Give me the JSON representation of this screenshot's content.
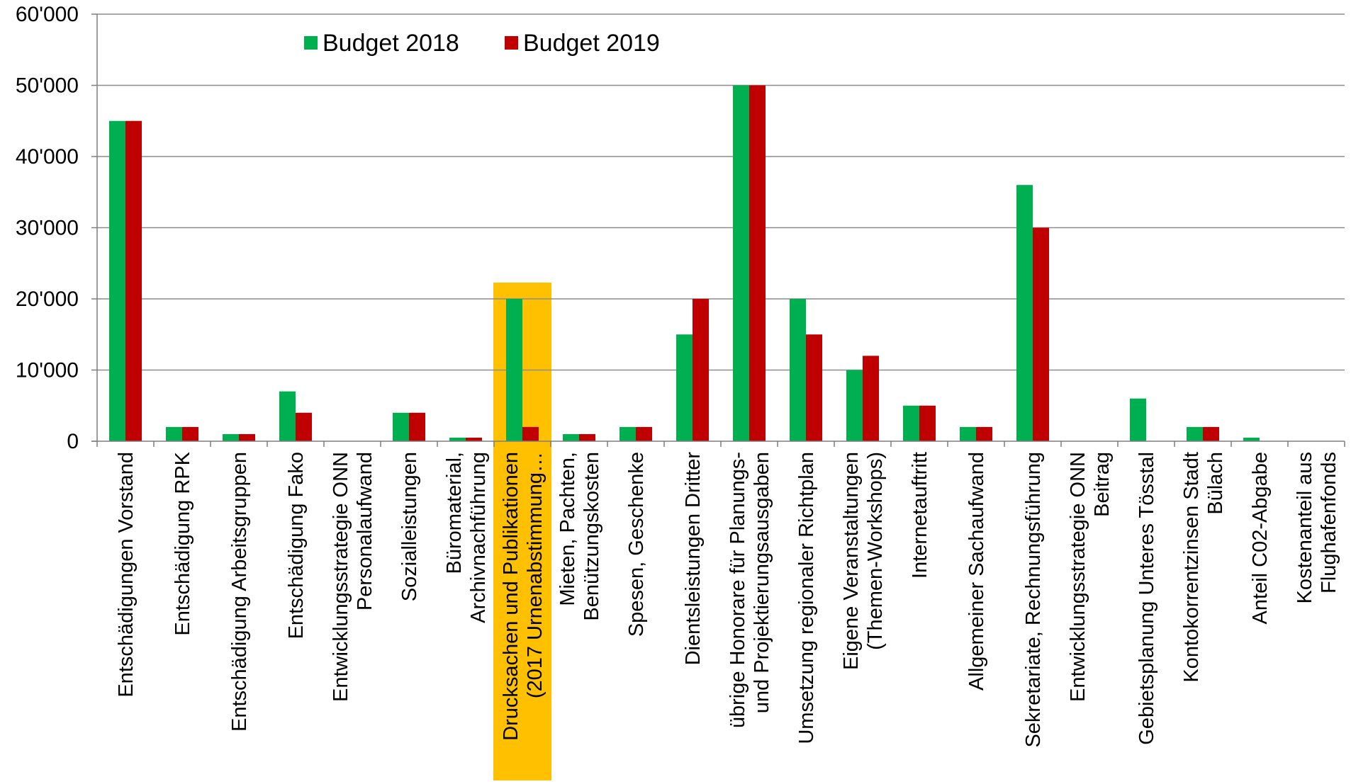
{
  "chart_data": {
    "type": "bar",
    "title": "",
    "xlabel": "",
    "ylabel": "",
    "ylim": [
      0,
      60000
    ],
    "yticks": [
      {
        "value": 0,
        "label": "0"
      },
      {
        "value": 10000,
        "label": "10'000"
      },
      {
        "value": 20000,
        "label": "20'000"
      },
      {
        "value": 30000,
        "label": "30'000"
      },
      {
        "value": 40000,
        "label": "40'000"
      },
      {
        "value": 50000,
        "label": "50'000"
      },
      {
        "value": 60000,
        "label": "60'000"
      }
    ],
    "grid": true,
    "legend_position": "top-left",
    "categories": [
      [
        "Entschädigungen Vorstand"
      ],
      [
        "Entschädigung RPK"
      ],
      [
        "Entschädigung Arbeitsgruppen"
      ],
      [
        "Entschädigung Fako"
      ],
      [
        "Entwicklungsstrategie ONN",
        "Personalaufwand"
      ],
      [
        "Sozialleistungen"
      ],
      [
        "Büromaterial,",
        "Archivnachführung"
      ],
      [
        "Drucksachen und Publikationen",
        "(2017 Urnenabstimmung…"
      ],
      [
        "Mieten, Pachten,",
        "Benützungskosten"
      ],
      [
        "Spesen, Geschenke"
      ],
      [
        "Dientsleistungen Dritter"
      ],
      [
        "übrige Honorare für Planungs-",
        "und Projektierungsausgaben"
      ],
      [
        "Umsetzung regionaler Richtplan"
      ],
      [
        "Eigene Veranstaltungen",
        "(Themen-Workshops)"
      ],
      [
        "Internetauftritt"
      ],
      [
        "Allgemeiner Sachaufwand"
      ],
      [
        "Sekretariate, Rechnungsführung"
      ],
      [
        "Entwicklungsstrategie ONN",
        "Beitrag"
      ],
      [
        "Gebietsplanung Unteres Tösstal"
      ],
      [
        "Kontokorrentzinsen Stadt",
        "Bülach"
      ],
      [
        "Anteil C02-Abgabe"
      ],
      [
        "Kostenanteil aus",
        "Flughafenfonds"
      ]
    ],
    "highlighted_category_index": 7,
    "highlight_color": "#FFC000",
    "series": [
      {
        "name": "Budget 2018",
        "color": "#00B050",
        "values": [
          45000,
          2000,
          1000,
          7000,
          0,
          4000,
          500,
          20000,
          1000,
          2000,
          15000,
          50000,
          20000,
          10000,
          5000,
          2000,
          36000,
          0,
          6000,
          2000,
          500,
          0
        ]
      },
      {
        "name": "Budget 2019",
        "color": "#C00000",
        "values": [
          45000,
          2000,
          1000,
          4000,
          0,
          4000,
          500,
          2000,
          1000,
          2000,
          20000,
          50000,
          15000,
          12000,
          5000,
          2000,
          30000,
          0,
          0,
          2000,
          0,
          0
        ]
      }
    ]
  }
}
